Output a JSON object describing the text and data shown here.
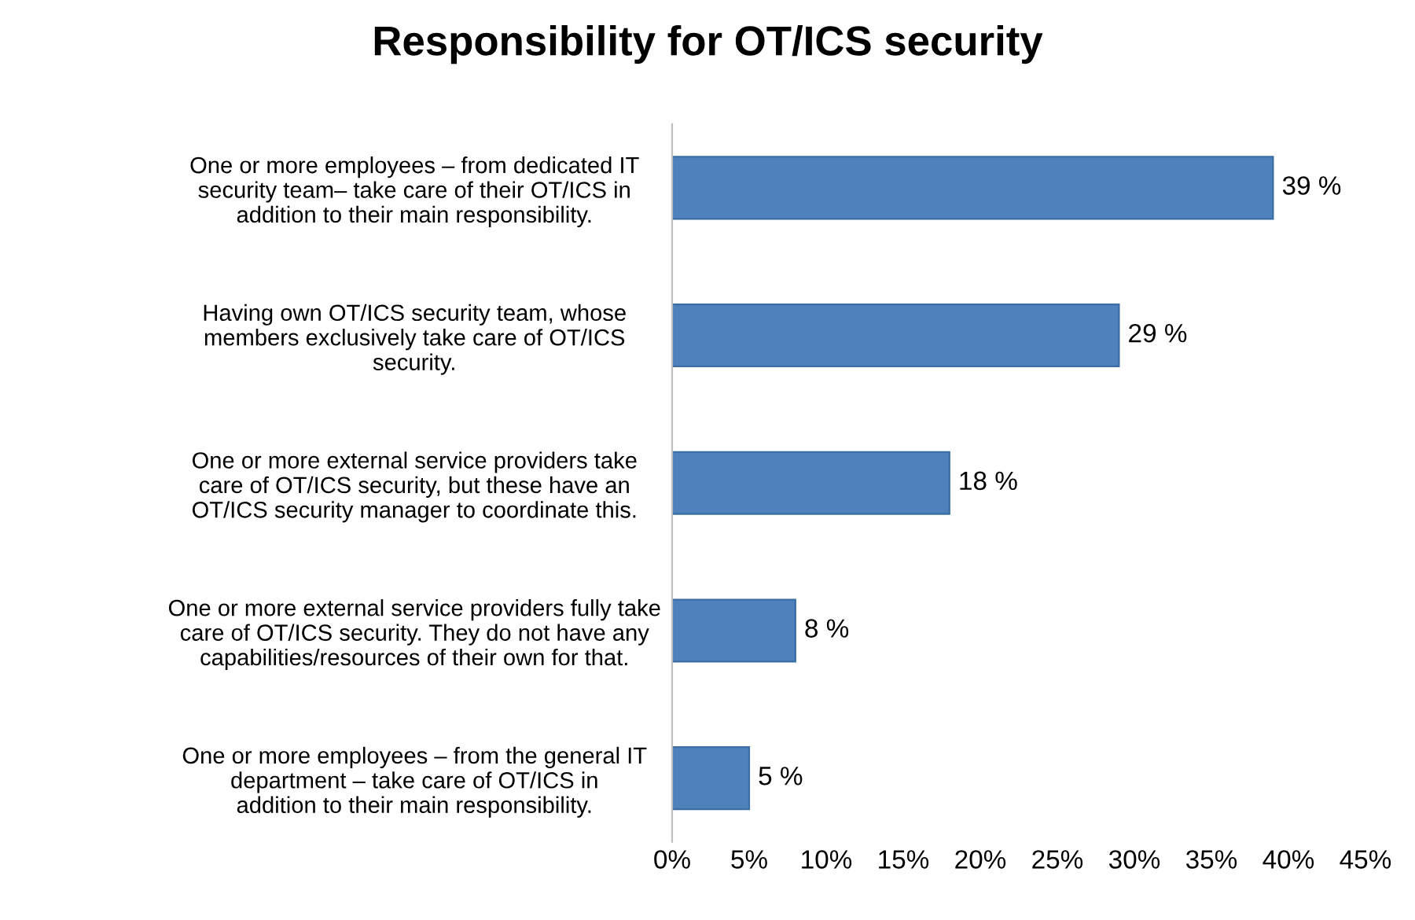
{
  "chart_data": {
    "type": "bar",
    "orientation": "horizontal",
    "title": "Responsibility for OT/ICS security",
    "categories": [
      "One or more employees – from dedicated IT\nsecurity team– take care of their OT/ICS in\naddition to their main responsibility.",
      "Having own OT/ICS security team, whose\nmembers exclusively take care of OT/ICS\nsecurity.",
      "One or more external service providers take\ncare of OT/ICS security, but these have an\nOT/ICS security manager to coordinate this.",
      "One or more external service providers fully take\ncare of OT/ICS security. They do not have any\ncapabilities/resources of their own for that.",
      "One or more employees – from the general IT\ndepartment – take care of OT/ICS in\naddition to their main responsibility."
    ],
    "values": [
      39,
      29,
      18,
      8,
      5
    ],
    "value_labels": [
      "39 %",
      "29 %",
      "18 %",
      "8 %",
      "5 %"
    ],
    "color": "#4f81bd",
    "xlim": [
      0,
      45
    ],
    "xticks": [
      {
        "value": 0,
        "label": "0%"
      },
      {
        "value": 5,
        "label": "5%"
      },
      {
        "value": 10,
        "label": "10%"
      },
      {
        "value": 15,
        "label": "15%"
      },
      {
        "value": 20,
        "label": "20%"
      },
      {
        "value": 25,
        "label": "25%"
      },
      {
        "value": 30,
        "label": "30%"
      },
      {
        "value": 35,
        "label": "35%"
      },
      {
        "value": 40,
        "label": "40%"
      },
      {
        "value": 45,
        "label": "45%"
      }
    ],
    "grid": false
  }
}
